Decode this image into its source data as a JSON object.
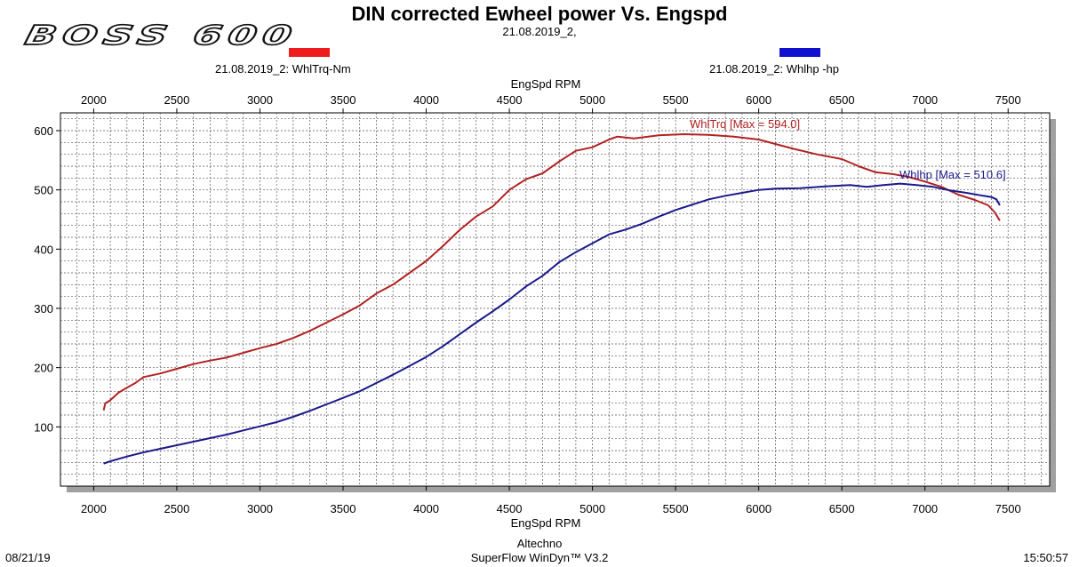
{
  "brand": {
    "logo_text": "BOSS 600"
  },
  "header": {
    "title": "DIN corrected Ewheel power Vs. Engspd",
    "subtitle": "21.08.2019_2,"
  },
  "legend": [
    {
      "label": "21.08.2019_2: WhlTrq-Nm",
      "color": "#ee1c1c"
    },
    {
      "label": "21.08.2019_2: Whlhp -hp",
      "color": "#1010d0"
    }
  ],
  "footer": {
    "left": "08/21/19",
    "center_line1": "Altechno",
    "center_line2": "SuperFlow WinDyn™ V3.2",
    "right": "15:50:57"
  },
  "colors": {
    "torque_line": "#b22222",
    "hp_line": "#1a1a8c",
    "grid": "#555555",
    "frame_shadow": "#a0a0a0"
  },
  "chart_data": {
    "type": "line",
    "title": "DIN corrected Ewheel power Vs. Engspd",
    "subtitle": "21.08.2019_2,",
    "xlabel_top": "EngSpd RPM",
    "xlabel": "EngSpd RPM",
    "ylabel": "",
    "xlim": [
      1800,
      7750
    ],
    "ylim": [
      0,
      630
    ],
    "x_ticks": [
      2000,
      2500,
      3000,
      3500,
      4000,
      4500,
      5000,
      5500,
      6000,
      6500,
      7000,
      7500
    ],
    "y_ticks": [
      100,
      200,
      300,
      400,
      500,
      600
    ],
    "grid": true,
    "series": [
      {
        "name": "21.08.2019_2: WhlTrq-Nm",
        "annotation": "WhlTrq [Max = 594.0]",
        "points": [
          [
            2060,
            128
          ],
          [
            2070,
            140
          ],
          [
            2100,
            145
          ],
          [
            2150,
            158
          ],
          [
            2200,
            166
          ],
          [
            2250,
            174
          ],
          [
            2300,
            184
          ],
          [
            2400,
            190
          ],
          [
            2500,
            198
          ],
          [
            2600,
            206
          ],
          [
            2700,
            212
          ],
          [
            2800,
            217
          ],
          [
            2900,
            225
          ],
          [
            3000,
            233
          ],
          [
            3100,
            240
          ],
          [
            3200,
            250
          ],
          [
            3300,
            262
          ],
          [
            3400,
            276
          ],
          [
            3500,
            290
          ],
          [
            3600,
            305
          ],
          [
            3700,
            325
          ],
          [
            3800,
            340
          ],
          [
            3900,
            360
          ],
          [
            4000,
            380
          ],
          [
            4100,
            405
          ],
          [
            4200,
            432
          ],
          [
            4300,
            455
          ],
          [
            4400,
            472
          ],
          [
            4500,
            500
          ],
          [
            4600,
            518
          ],
          [
            4700,
            528
          ],
          [
            4800,
            548
          ],
          [
            4900,
            566
          ],
          [
            5000,
            572
          ],
          [
            5100,
            585
          ],
          [
            5150,
            590
          ],
          [
            5250,
            587
          ],
          [
            5400,
            592
          ],
          [
            5550,
            594
          ],
          [
            5700,
            593
          ],
          [
            5850,
            590
          ],
          [
            6000,
            585
          ],
          [
            6200,
            570
          ],
          [
            6350,
            560
          ],
          [
            6500,
            552
          ],
          [
            6600,
            540
          ],
          [
            6700,
            530
          ],
          [
            6800,
            527
          ],
          [
            6900,
            522
          ],
          [
            7000,
            514
          ],
          [
            7100,
            505
          ],
          [
            7200,
            492
          ],
          [
            7300,
            483
          ],
          [
            7380,
            474
          ],
          [
            7420,
            462
          ],
          [
            7450,
            448
          ]
        ]
      },
      {
        "name": "21.08.2019_2: Whlhp -hp",
        "annotation": "Whlhp [Max = 510.6]",
        "points": [
          [
            2060,
            38
          ],
          [
            2100,
            42
          ],
          [
            2200,
            50
          ],
          [
            2300,
            57
          ],
          [
            2400,
            63
          ],
          [
            2500,
            69
          ],
          [
            2600,
            75
          ],
          [
            2700,
            81
          ],
          [
            2800,
            87
          ],
          [
            2900,
            94
          ],
          [
            3000,
            101
          ],
          [
            3100,
            108
          ],
          [
            3200,
            117
          ],
          [
            3300,
            127
          ],
          [
            3400,
            138
          ],
          [
            3500,
            149
          ],
          [
            3600,
            160
          ],
          [
            3700,
            174
          ],
          [
            3800,
            188
          ],
          [
            3900,
            203
          ],
          [
            4000,
            218
          ],
          [
            4100,
            236
          ],
          [
            4200,
            256
          ],
          [
            4300,
            276
          ],
          [
            4400,
            295
          ],
          [
            4500,
            315
          ],
          [
            4600,
            337
          ],
          [
            4700,
            355
          ],
          [
            4800,
            378
          ],
          [
            4900,
            395
          ],
          [
            5000,
            410
          ],
          [
            5100,
            425
          ],
          [
            5200,
            433
          ],
          [
            5300,
            443
          ],
          [
            5400,
            455
          ],
          [
            5500,
            466
          ],
          [
            5600,
            475
          ],
          [
            5700,
            484
          ],
          [
            5800,
            490
          ],
          [
            5900,
            495
          ],
          [
            6000,
            500
          ],
          [
            6100,
            502
          ],
          [
            6250,
            503
          ],
          [
            6400,
            506
          ],
          [
            6550,
            508
          ],
          [
            6650,
            505
          ],
          [
            6750,
            508
          ],
          [
            6850,
            510.6
          ],
          [
            6950,
            508
          ],
          [
            7050,
            505
          ],
          [
            7150,
            499
          ],
          [
            7250,
            495
          ],
          [
            7350,
            490
          ],
          [
            7400,
            488
          ],
          [
            7430,
            484
          ],
          [
            7450,
            474
          ]
        ]
      }
    ]
  }
}
